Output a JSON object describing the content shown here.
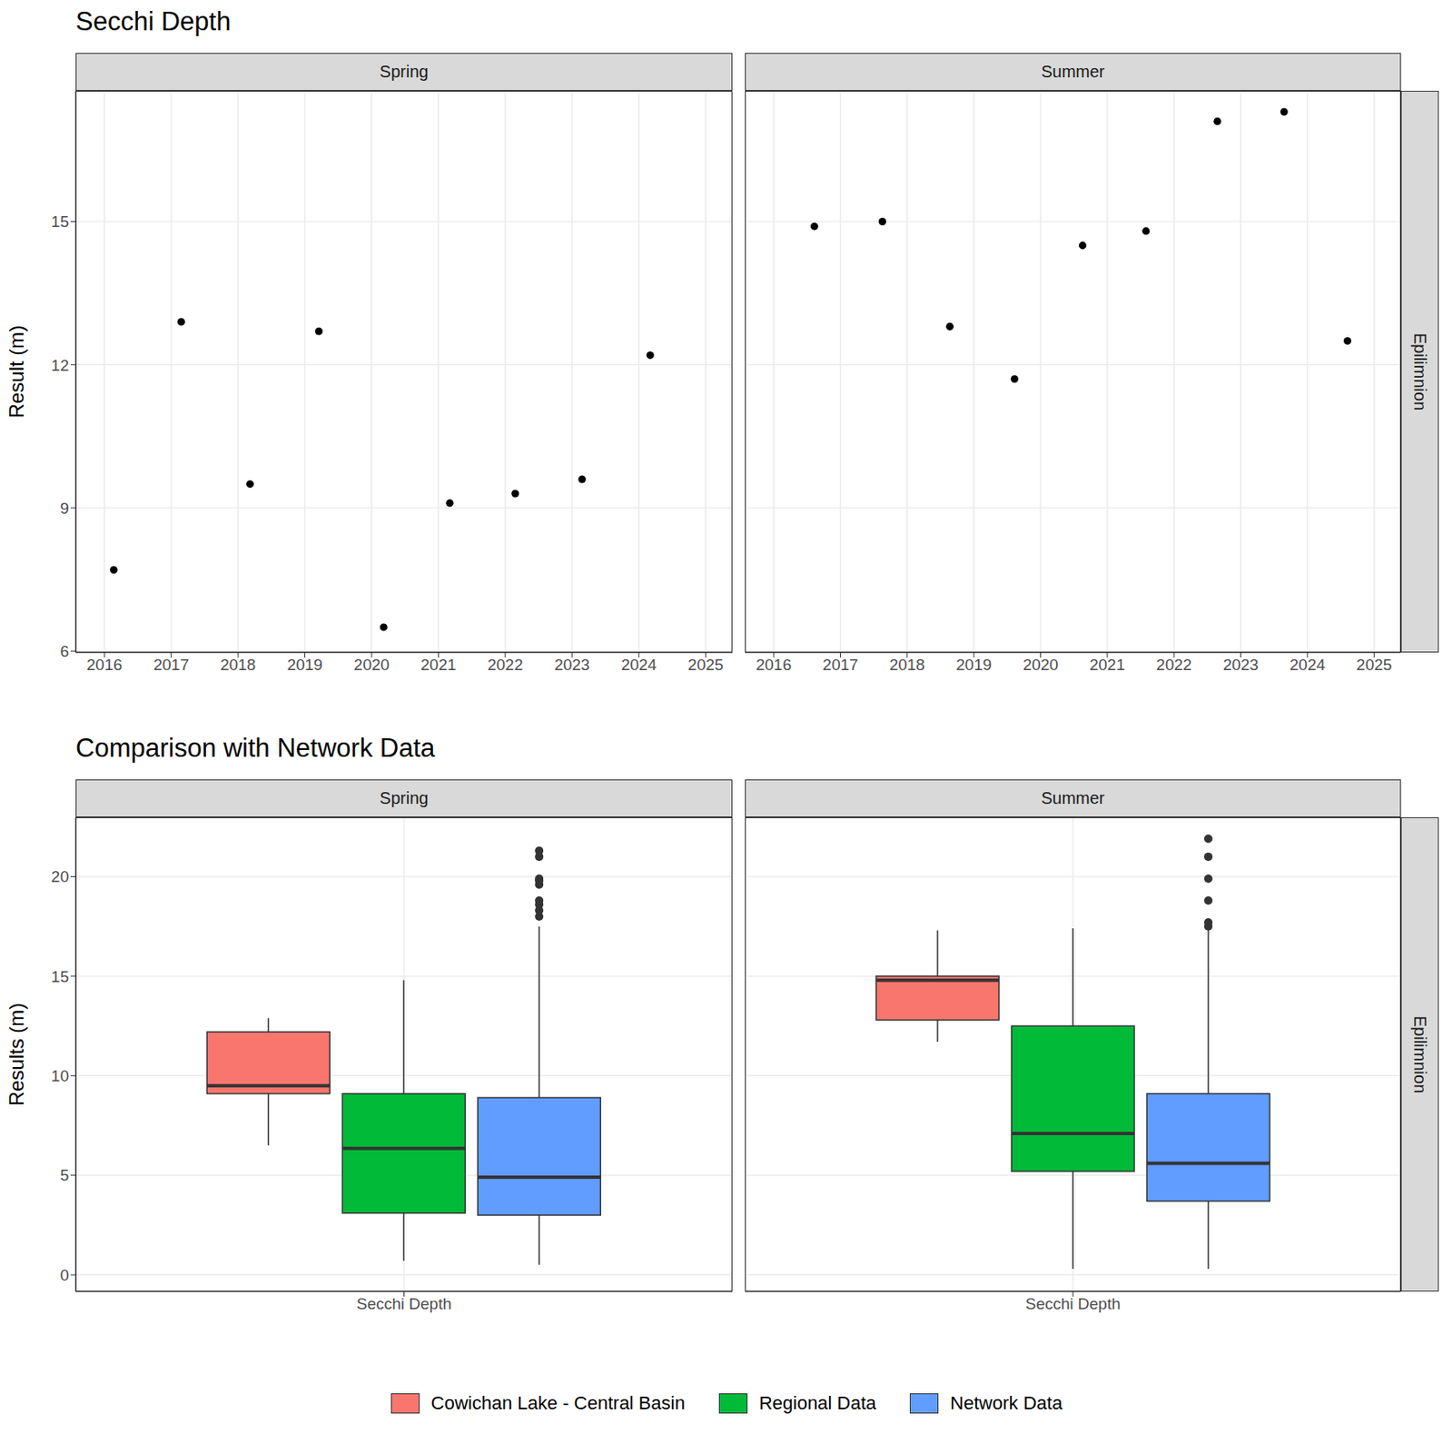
{
  "chart_data": [
    {
      "type": "scatter",
      "title": "Secchi Depth",
      "y_label": "Result (m)",
      "row_facet": "Epilimnion",
      "color": "#000000",
      "grid": true,
      "xlim": [
        2015.57,
        2025.4
      ],
      "xticks": [
        2016,
        2017,
        2018,
        2019,
        2020,
        2021,
        2022,
        2023,
        2024,
        2025
      ],
      "ylim": [
        5.97,
        17.74
      ],
      "yticks": [
        6,
        9,
        12,
        15
      ],
      "facets": [
        {
          "label": "Spring",
          "x": [
            2016.14,
            2017.15,
            2018.18,
            2019.21,
            2020.18,
            2021.17,
            2022.15,
            2023.15,
            2024.17
          ],
          "values": [
            7.7,
            12.9,
            9.5,
            12.7,
            6.5,
            9.1,
            9.3,
            9.6,
            12.2
          ]
        },
        {
          "label": "Summer",
          "x": [
            2016.61,
            2017.63,
            2018.64,
            2019.61,
            2020.63,
            2021.58,
            2022.65,
            2023.65,
            2024.6
          ],
          "values": [
            14.9,
            15.0,
            12.8,
            11.7,
            14.5,
            14.8,
            17.1,
            17.3,
            12.5
          ]
        }
      ]
    },
    {
      "type": "box",
      "title": "Comparison with Network Data",
      "y_label": "Results (m)",
      "row_facet": "Epilimnion",
      "grid": true,
      "legend": "bottom",
      "categories": [
        "Secchi Depth"
      ],
      "facets": [
        "Spring",
        "Summer"
      ],
      "ylim": [
        -0.84,
        22.98
      ],
      "yticks": [
        0,
        5,
        10,
        15,
        20
      ],
      "series": [
        {
          "name": "Cowichan Lake - Central Basin",
          "color": "#F8766D",
          "stats": [
            {
              "whisker_low": 6.5,
              "q1": 9.1,
              "median": 9.5,
              "q3": 12.2,
              "whisker_high": 12.9,
              "outliers": []
            },
            {
              "whisker_low": 11.7,
              "q1": 12.8,
              "median": 14.8,
              "q3": 15.0,
              "whisker_high": 17.3,
              "outliers": []
            }
          ]
        },
        {
          "name": "Regional Data",
          "color": "#00BA38",
          "stats": [
            {
              "whisker_low": 0.7,
              "q1": 3.1,
              "median": 6.35,
              "q3": 9.1,
              "whisker_high": 14.8,
              "outliers": []
            },
            {
              "whisker_low": 0.3,
              "q1": 5.2,
              "median": 7.1,
              "q3": 12.5,
              "whisker_high": 17.4,
              "outliers": []
            }
          ]
        },
        {
          "name": "Network Data",
          "color": "#619CFF",
          "stats": [
            {
              "whisker_low": 0.5,
              "q1": 3.0,
              "median": 4.9,
              "q3": 8.9,
              "whisker_high": 17.5,
              "outliers": [
                18.0,
                18.3,
                18.6,
                18.8,
                19.6,
                19.8,
                19.9,
                21.0,
                21.3
              ]
            },
            {
              "whisker_low": 0.3,
              "q1": 3.7,
              "median": 5.6,
              "q3": 9.1,
              "whisker_high": 17.4,
              "outliers": [
                17.5,
                17.7,
                18.8,
                19.9,
                21.0,
                21.9
              ]
            }
          ]
        }
      ]
    }
  ]
}
